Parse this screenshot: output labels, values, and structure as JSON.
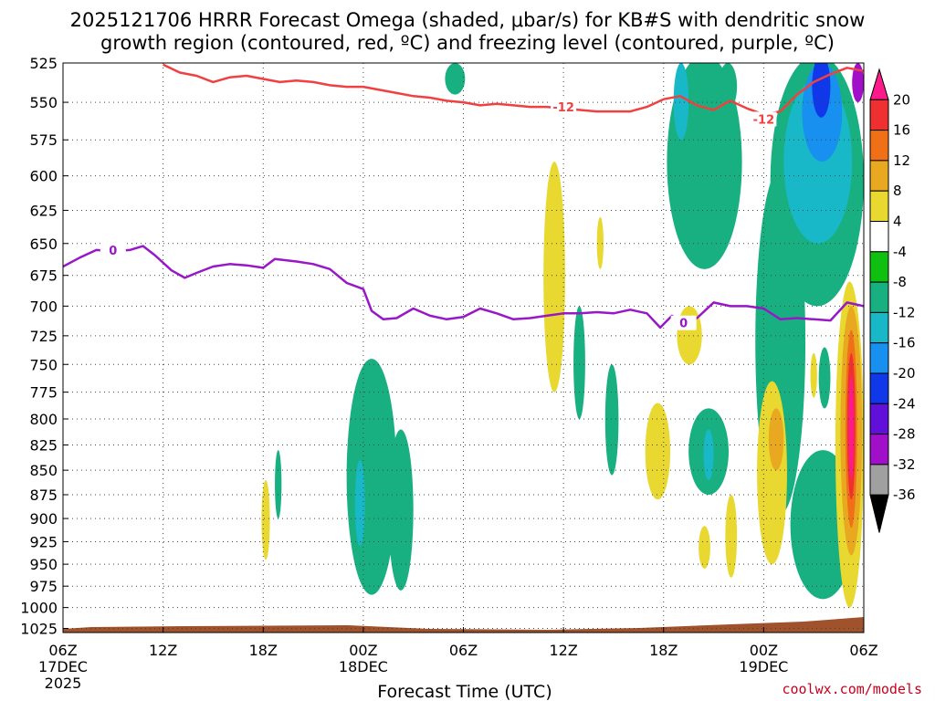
{
  "title": {
    "line1": "2025121706 HRRR Forecast Omega (shaded, μbar/s) for KB#S with dendritic snow",
    "line2": "growth region (contoured, red, ºC) and freezing level (contoured, purple, ºC)"
  },
  "credit": "coolwx.com/models",
  "chart_data": {
    "type": "contour",
    "xlabel": "Forecast Time (UTC)",
    "ylabel": "",
    "x_range_hours": [
      0,
      48
    ],
    "y_range_hpa": [
      525,
      1030
    ],
    "y_scale": "log-pressure, inverted",
    "grid": true,
    "y_ticks": [
      525,
      550,
      575,
      600,
      625,
      650,
      675,
      700,
      725,
      750,
      775,
      800,
      825,
      850,
      875,
      900,
      925,
      950,
      975,
      1000,
      1025
    ],
    "x_ticks": [
      {
        "h": 0,
        "l1": "06Z",
        "l2": "17DEC",
        "l3": "2025"
      },
      {
        "h": 6,
        "l1": "12Z",
        "l2": "",
        "l3": ""
      },
      {
        "h": 12,
        "l1": "18Z",
        "l2": "",
        "l3": ""
      },
      {
        "h": 18,
        "l1": "00Z",
        "l2": "18DEC",
        "l3": ""
      },
      {
        "h": 24,
        "l1": "06Z",
        "l2": "",
        "l3": ""
      },
      {
        "h": 30,
        "l1": "12Z",
        "l2": "",
        "l3": ""
      },
      {
        "h": 36,
        "l1": "18Z",
        "l2": "",
        "l3": ""
      },
      {
        "h": 42,
        "l1": "00Z",
        "l2": "19DEC",
        "l3": ""
      },
      {
        "h": 48,
        "l1": "06Z",
        "l2": "",
        "l3": ""
      }
    ],
    "colorbar": {
      "levels": [
        20,
        16,
        12,
        8,
        4,
        -4,
        -8,
        -12,
        -16,
        -20,
        -24,
        -28,
        -32,
        -36
      ],
      "colors": [
        "#ff1a8c",
        "#ee3030",
        "#f07018",
        "#e8a820",
        "#e8d830",
        "#ffffff",
        "#10c010",
        "#18b080",
        "#18b8c8",
        "#1890f0",
        "#1038e8",
        "#6010d8",
        "#a010c8",
        "#a0a0a0",
        "#000000"
      ]
    },
    "series": [
      {
        "name": "-12",
        "color": "#f04040",
        "label_at": [
          [
            30,
            553
          ],
          [
            42.0,
            561
          ]
        ],
        "points": [
          [
            6.0,
            526
          ],
          [
            7,
            531
          ],
          [
            8,
            533
          ],
          [
            9,
            537
          ],
          [
            10,
            534
          ],
          [
            11,
            533
          ],
          [
            12,
            535
          ],
          [
            13,
            537
          ],
          [
            14,
            536
          ],
          [
            15,
            537
          ],
          [
            16,
            539
          ],
          [
            17,
            540
          ],
          [
            18,
            540
          ],
          [
            19,
            542
          ],
          [
            20,
            544
          ],
          [
            21,
            546
          ],
          [
            22,
            547
          ],
          [
            23,
            549
          ],
          [
            24,
            550
          ],
          [
            25,
            552
          ],
          [
            26,
            551
          ],
          [
            27,
            552
          ],
          [
            28,
            553
          ],
          [
            29,
            553
          ],
          [
            30,
            554
          ],
          [
            31,
            555
          ],
          [
            32,
            556
          ],
          [
            33,
            556
          ],
          [
            34,
            556
          ],
          [
            35,
            553
          ],
          [
            36,
            548
          ],
          [
            37,
            546
          ],
          [
            38,
            552
          ],
          [
            39,
            555
          ],
          [
            40,
            549
          ],
          [
            41,
            554
          ],
          [
            42,
            558
          ],
          [
            43,
            556
          ],
          [
            44,
            545
          ],
          [
            45,
            537
          ],
          [
            46,
            532
          ],
          [
            47,
            528
          ],
          [
            48,
            530
          ]
        ]
      },
      {
        "name": "0",
        "color": "#9818c8",
        "label_at": [
          [
            3,
            655
          ],
          [
            37.2,
            714
          ]
        ],
        "points": [
          [
            0,
            668
          ],
          [
            1,
            661
          ],
          [
            2,
            655
          ],
          [
            3,
            656
          ],
          [
            4,
            655
          ],
          [
            4.8,
            652
          ],
          [
            5.5,
            659
          ],
          [
            6.5,
            671
          ],
          [
            7.3,
            677
          ],
          [
            8,
            673
          ],
          [
            9,
            668
          ],
          [
            10,
            666
          ],
          [
            11,
            667
          ],
          [
            12,
            669
          ],
          [
            12.7,
            662
          ],
          [
            14,
            664
          ],
          [
            15,
            666
          ],
          [
            16,
            670
          ],
          [
            17,
            681
          ],
          [
            18,
            686
          ],
          [
            18.5,
            704
          ],
          [
            19.2,
            711
          ],
          [
            20,
            710
          ],
          [
            21,
            702
          ],
          [
            22,
            708
          ],
          [
            23,
            711
          ],
          [
            24,
            709
          ],
          [
            25,
            702
          ],
          [
            26,
            706
          ],
          [
            27,
            711
          ],
          [
            28,
            710
          ],
          [
            29,
            708
          ],
          [
            30,
            706
          ],
          [
            31,
            706
          ],
          [
            32,
            705
          ],
          [
            33,
            706
          ],
          [
            34,
            703
          ],
          [
            35,
            706
          ],
          [
            35.8,
            718
          ],
          [
            36.5,
            708
          ],
          [
            37.2,
            714
          ],
          [
            38,
            710
          ],
          [
            39,
            697
          ],
          [
            40,
            700
          ],
          [
            41,
            700
          ],
          [
            42,
            702
          ],
          [
            43,
            711
          ],
          [
            44,
            710
          ],
          [
            45,
            711
          ],
          [
            46,
            712
          ],
          [
            47,
            697
          ],
          [
            48,
            700
          ]
        ]
      }
    ],
    "shaded_regions": [
      {
        "level": -8,
        "h0": 22.9,
        "h1": 24.1,
        "p0": 525,
        "p1": 545
      },
      {
        "level": 4,
        "h0": 28.8,
        "h1": 30.1,
        "p0": 590,
        "p1": 775
      },
      {
        "level": 4,
        "h0": 32.0,
        "h1": 32.4,
        "p0": 630,
        "p1": 670
      },
      {
        "level": -8,
        "h0": 30.6,
        "h1": 31.3,
        "p0": 700,
        "p1": 800
      },
      {
        "level": -8,
        "h0": 32.5,
        "h1": 33.3,
        "p0": 750,
        "p1": 855
      },
      {
        "level": 4,
        "h0": 34.9,
        "h1": 36.4,
        "p0": 785,
        "p1": 880
      },
      {
        "level": 4,
        "h0": 36.8,
        "h1": 38.3,
        "p0": 700,
        "p1": 750
      },
      {
        "level": -8,
        "h0": 36.2,
        "h1": 40.7,
        "p0": 520,
        "p1": 670
      },
      {
        "level": -12,
        "h0": 36.6,
        "h1": 37.5,
        "p0": 525,
        "p1": 575
      },
      {
        "level": -8,
        "h0": 37.5,
        "h1": 39.9,
        "p0": 790,
        "p1": 875
      },
      {
        "level": -12,
        "h0": 38.4,
        "h1": 39.0,
        "p0": 810,
        "p1": 860
      },
      {
        "level": 4,
        "h0": 38.1,
        "h1": 38.8,
        "p0": 908,
        "p1": 955
      },
      {
        "level": 4,
        "h0": 39.7,
        "h1": 40.4,
        "p0": 875,
        "p1": 965
      },
      {
        "level": -8,
        "h0": 39.3,
        "h1": 40.4,
        "p0": 525,
        "p1": 555
      },
      {
        "level": -8,
        "h0": 41.5,
        "h1": 44.5,
        "p0": 595,
        "p1": 895
      },
      {
        "level": 4,
        "h0": 41.6,
        "h1": 43.4,
        "p0": 765,
        "p1": 950
      },
      {
        "level": 8,
        "h0": 42.3,
        "h1": 43.2,
        "p0": 790,
        "p1": 850
      },
      {
        "level": -8,
        "h0": 42.4,
        "h1": 48.0,
        "p0": 520,
        "p1": 700
      },
      {
        "level": -12,
        "h0": 43.2,
        "h1": 47.3,
        "p0": 535,
        "p1": 650
      },
      {
        "level": -16,
        "h0": 44.3,
        "h1": 46.7,
        "p0": 525,
        "p1": 590
      },
      {
        "level": -20,
        "h0": 44.9,
        "h1": 46.0,
        "p0": 520,
        "p1": 560
      },
      {
        "level": -28,
        "h0": 47.3,
        "h1": 48.0,
        "p0": 525,
        "p1": 550
      },
      {
        "level": -8,
        "h0": 43.6,
        "h1": 47.5,
        "p0": 830,
        "p1": 990
      },
      {
        "level": 4,
        "h0": 46.3,
        "h1": 48.0,
        "p0": 680,
        "p1": 1000
      },
      {
        "level": 8,
        "h0": 46.6,
        "h1": 47.9,
        "p0": 700,
        "p1": 940
      },
      {
        "level": 12,
        "h0": 46.9,
        "h1": 47.6,
        "p0": 720,
        "p1": 910
      },
      {
        "level": 16,
        "h0": 47.0,
        "h1": 47.5,
        "p0": 740,
        "p1": 880
      },
      {
        "level": 20,
        "h0": 47.1,
        "h1": 47.4,
        "p0": 760,
        "p1": 860
      },
      {
        "level": -8,
        "h0": 43.5,
        "h1": 44.4,
        "p0": 745,
        "p1": 775
      },
      {
        "level": 4,
        "h0": 44.8,
        "h1": 45.2,
        "p0": 740,
        "p1": 780
      },
      {
        "level": -8,
        "h0": 45.3,
        "h1": 46.0,
        "p0": 735,
        "p1": 790
      },
      {
        "level": 4,
        "h0": 11.9,
        "h1": 12.4,
        "p0": 860,
        "p1": 945
      },
      {
        "level": -8,
        "h0": 12.7,
        "h1": 13.1,
        "p0": 830,
        "p1": 900
      },
      {
        "level": -8,
        "h0": 17.0,
        "h1": 20.0,
        "p0": 745,
        "p1": 985
      },
      {
        "level": -12,
        "h0": 17.5,
        "h1": 18.1,
        "p0": 840,
        "p1": 930
      },
      {
        "level": -8,
        "h0": 19.5,
        "h1": 21.0,
        "p0": 810,
        "p1": 980
      }
    ]
  }
}
